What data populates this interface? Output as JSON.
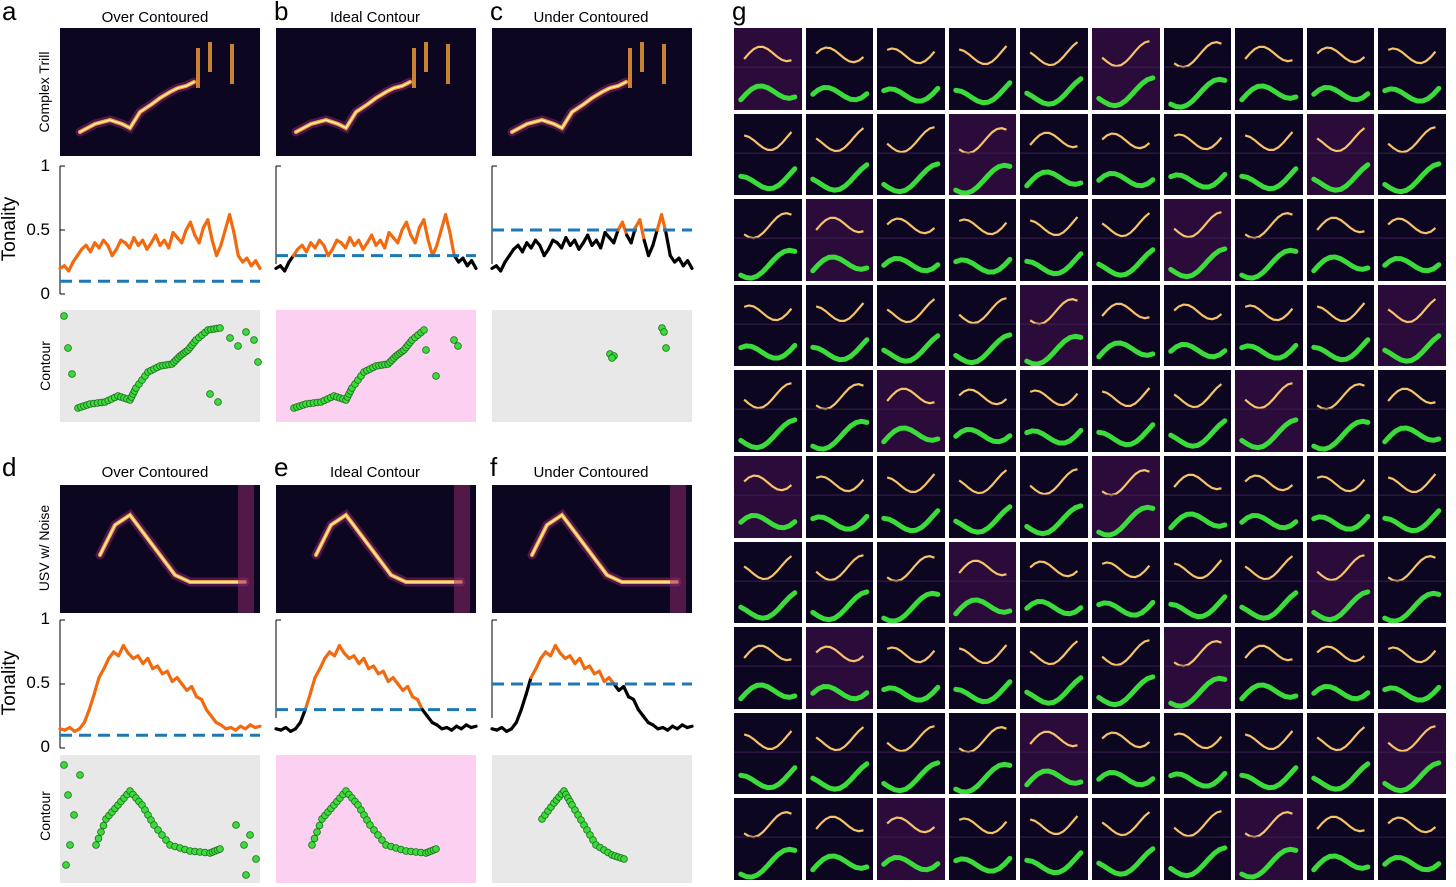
{
  "panels_top": {
    "letters": [
      "a",
      "b",
      "c"
    ],
    "titles": [
      "Over Contoured",
      "Ideal Contour",
      "Under Contoured"
    ],
    "row_label_spec": "Complex Trill",
    "ylabel_tonality": "Tonality",
    "row_label_contour": "Contour",
    "ticks": [
      "1",
      "0.5",
      "0"
    ],
    "thresholds": [
      0.1,
      0.3,
      0.5
    ]
  },
  "panels_bottom": {
    "letters": [
      "d",
      "e",
      "f"
    ],
    "titles": [
      "Over Contoured",
      "Ideal Contour",
      "Under Contoured"
    ],
    "row_label_spec": "USV w/ Noise",
    "ylabel_tonality": "Tonality",
    "row_label_contour": "Contour",
    "ticks": [
      "1",
      "0.5",
      "0"
    ],
    "thresholds": [
      0.1,
      0.3,
      0.5
    ]
  },
  "grid_panel": {
    "letter": "g",
    "rows": 10,
    "cols": 10
  },
  "colors": {
    "tonality_above": "#f26a10",
    "tonality_below": "#000000",
    "threshold": "#1f77b4",
    "contour_dot": "#3cdb3c",
    "contour_bg_normal": "#e8e8e8",
    "contour_bg_ideal": "#fcd0f0",
    "spectrogram_bg": "#0c0620"
  },
  "tonality_series": {
    "top": [
      0.2,
      0.22,
      0.18,
      0.25,
      0.3,
      0.35,
      0.38,
      0.33,
      0.4,
      0.36,
      0.42,
      0.38,
      0.3,
      0.35,
      0.42,
      0.4,
      0.36,
      0.44,
      0.38,
      0.42,
      0.35,
      0.4,
      0.46,
      0.38,
      0.42,
      0.36,
      0.48,
      0.44,
      0.4,
      0.5,
      0.56,
      0.46,
      0.4,
      0.52,
      0.58,
      0.42,
      0.3,
      0.38,
      0.5,
      0.62,
      0.48,
      0.3,
      0.25,
      0.28,
      0.22,
      0.26,
      0.2
    ],
    "bottom": [
      0.15,
      0.14,
      0.16,
      0.13,
      0.15,
      0.2,
      0.3,
      0.42,
      0.55,
      0.62,
      0.7,
      0.75,
      0.72,
      0.8,
      0.74,
      0.7,
      0.72,
      0.66,
      0.7,
      0.62,
      0.64,
      0.58,
      0.6,
      0.52,
      0.55,
      0.5,
      0.45,
      0.48,
      0.4,
      0.38,
      0.3,
      0.25,
      0.2,
      0.18,
      0.15,
      0.16,
      0.14,
      0.17,
      0.15,
      0.18,
      0.16,
      0.17
    ]
  }
}
